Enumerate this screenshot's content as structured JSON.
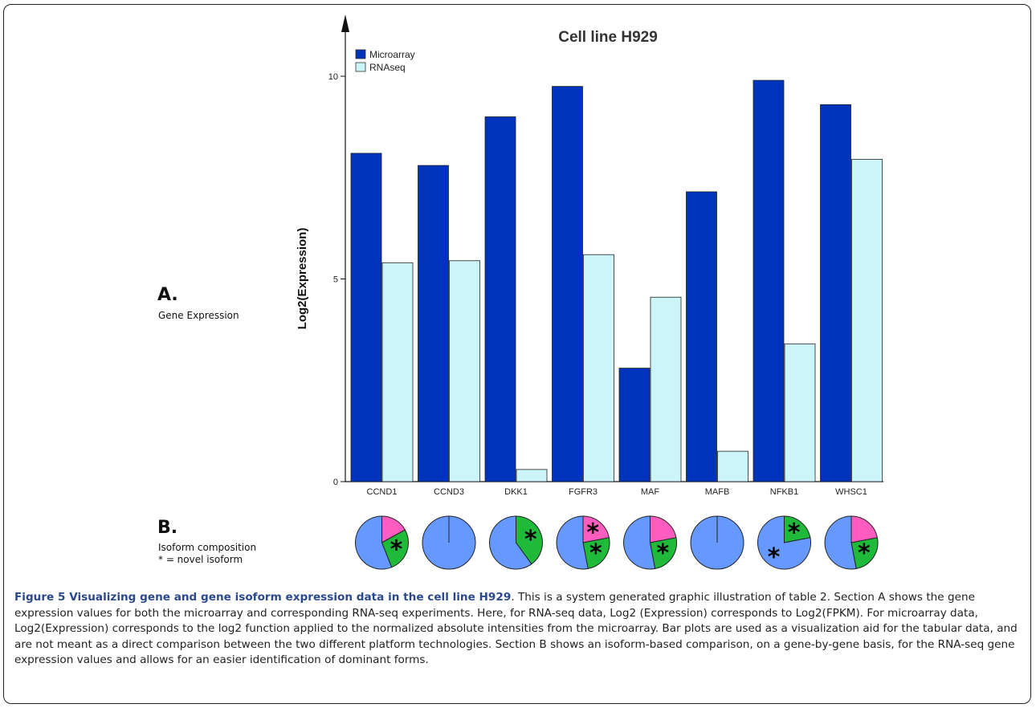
{
  "panel_a": {
    "letter": "A.",
    "subtitle": "Gene Expression"
  },
  "panel_b": {
    "letter": "B.",
    "subtitle": "Isoform composition",
    "note": "* = novel isoform"
  },
  "caption": {
    "title": "Figure 5 Visualizing gene and gene isoform expression data in the cell line H929",
    "body": ". This is a system generated graphic illustration of table 2. Section A shows the gene expression values for both the microarray and corresponding RNA-seq experiments. Here, for RNA-seq data, Log2 (Expression) corresponds to Log2(FPKM). For microarray data, Log2(Expression) corresponds to the log2 function applied to the normalized absolute intensities from the microarray. Bar plots are used as a visualization aid for the tabular data, and are not meant as a direct comparison between the two different platform technologies. Section B shows an isoform-based comparison, on a gene-by-gene basis, for the RNA-seq gene expression values and allows for an easier identification of dominant forms."
  },
  "chart_data": {
    "type": "bar",
    "title": "Cell line H929",
    "ylabel": "Log2(Expression)",
    "xlabel": "",
    "ylim": [
      0,
      10
    ],
    "yticks": [
      0,
      5,
      10
    ],
    "legend_position": "top-left",
    "categories": [
      "CCND1",
      "CCND3",
      "DKK1",
      "FGFR3",
      "MAF",
      "MAFB",
      "NFKB1",
      "WHSC1"
    ],
    "series": [
      {
        "name": "Microarray",
        "color": "#0033bb",
        "values": [
          8.1,
          7.8,
          9.0,
          9.75,
          2.8,
          7.15,
          9.9,
          9.3
        ]
      },
      {
        "name": "RNAseq",
        "color": "#ccf5fa",
        "values": [
          5.4,
          5.45,
          0.3,
          5.6,
          4.55,
          0.75,
          3.4,
          7.95
        ]
      }
    ],
    "isoform_pies": [
      {
        "gene": "CCND1",
        "slices": [
          {
            "fraction": 0.17,
            "color": "#ff5cbf",
            "novel": false
          },
          {
            "fraction": 0.27,
            "color": "#1fba3a",
            "novel": true
          },
          {
            "fraction": 0.56,
            "color": "#6699ff",
            "novel": false
          }
        ]
      },
      {
        "gene": "CCND3",
        "slices": [
          {
            "fraction": 1.0,
            "color": "#6699ff",
            "novel": false
          }
        ]
      },
      {
        "gene": "DKK1",
        "slices": [
          {
            "fraction": 0.4,
            "color": "#1fba3a",
            "novel": true
          },
          {
            "fraction": 0.6,
            "color": "#6699ff",
            "novel": false
          }
        ]
      },
      {
        "gene": "FGFR3",
        "slices": [
          {
            "fraction": 0.22,
            "color": "#ff5cbf",
            "novel": true
          },
          {
            "fraction": 0.25,
            "color": "#1fba3a",
            "novel": true
          },
          {
            "fraction": 0.53,
            "color": "#6699ff",
            "novel": false
          }
        ]
      },
      {
        "gene": "MAF",
        "slices": [
          {
            "fraction": 0.22,
            "color": "#ff5cbf",
            "novel": false
          },
          {
            "fraction": 0.25,
            "color": "#1fba3a",
            "novel": true
          },
          {
            "fraction": 0.53,
            "color": "#6699ff",
            "novel": false
          }
        ]
      },
      {
        "gene": "MAFB",
        "slices": [
          {
            "fraction": 1.0,
            "color": "#6699ff",
            "novel": false
          }
        ]
      },
      {
        "gene": "NFKB1",
        "slices": [
          {
            "fraction": 0.22,
            "color": "#1fba3a",
            "novel": true
          },
          {
            "fraction": 0.78,
            "color": "#6699ff",
            "novel": true
          }
        ]
      },
      {
        "gene": "WHSC1",
        "slices": [
          {
            "fraction": 0.22,
            "color": "#ff5cbf",
            "novel": false
          },
          {
            "fraction": 0.25,
            "color": "#1fba3a",
            "novel": true
          },
          {
            "fraction": 0.53,
            "color": "#6699ff",
            "novel": false
          }
        ]
      }
    ]
  }
}
